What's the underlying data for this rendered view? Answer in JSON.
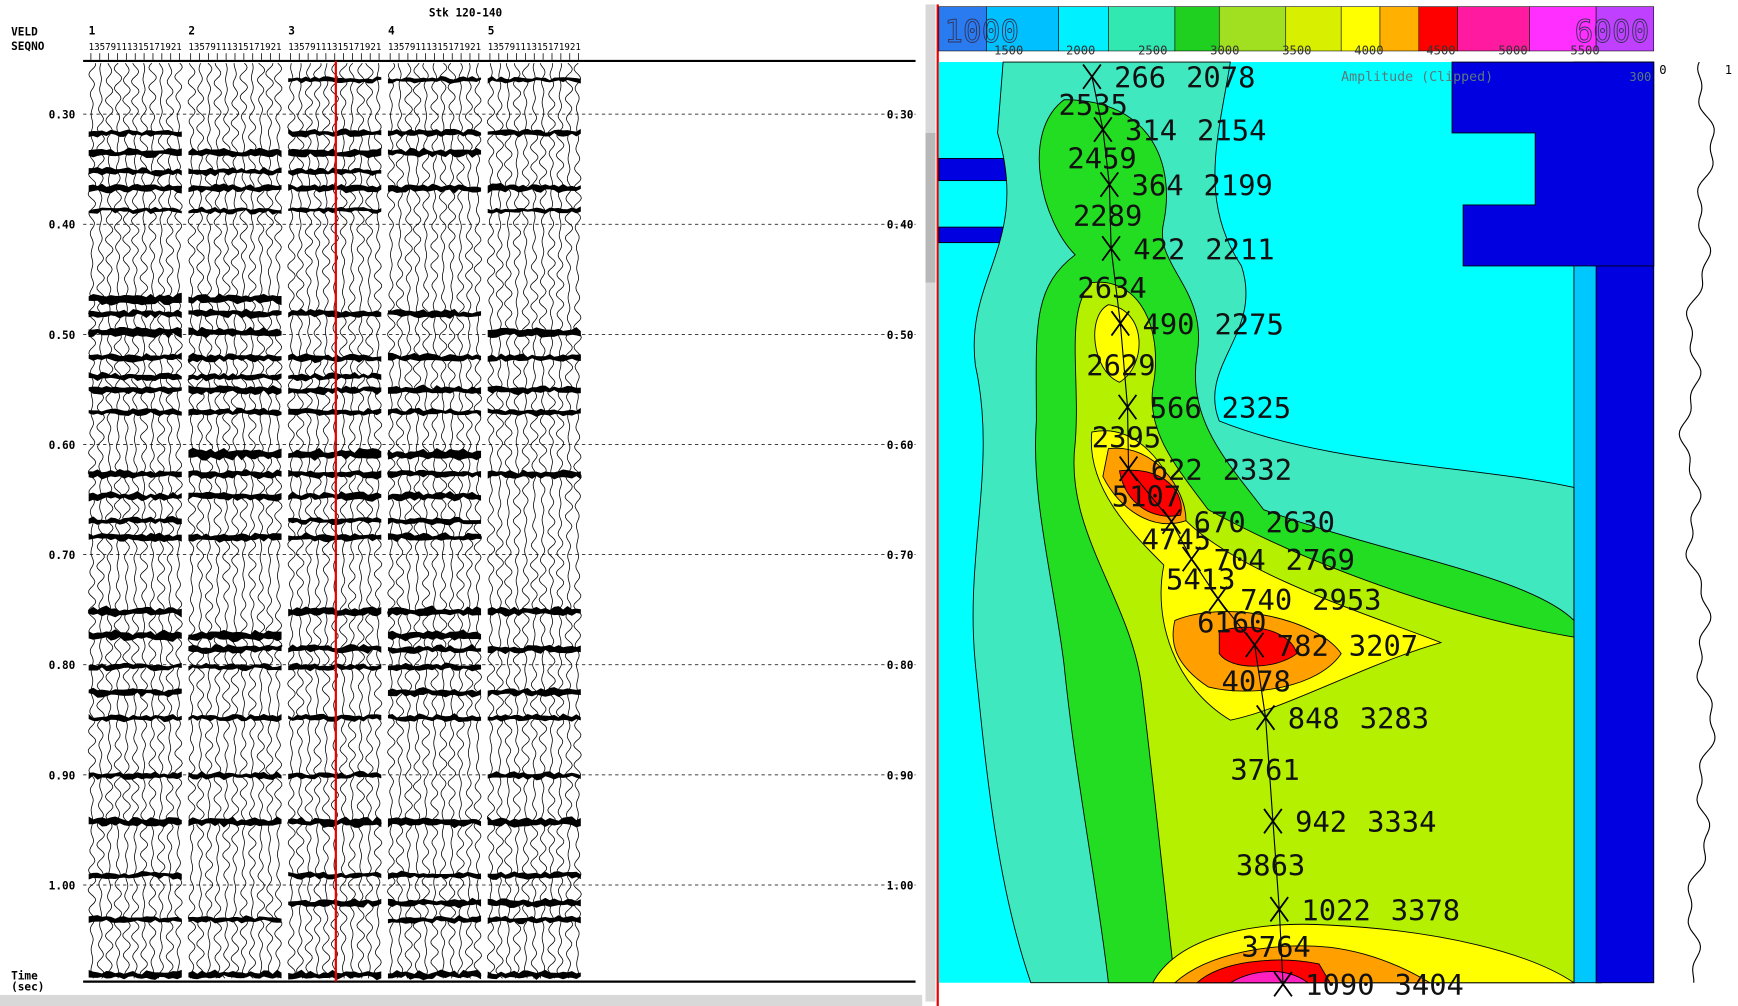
{
  "left_panel": {
    "title": "Stk 120-140",
    "header_labels": [
      "VELD",
      "SEQNO"
    ],
    "groups": [
      "1",
      "2",
      "3",
      "4",
      "5"
    ],
    "trace_numbers": "13579111315171921",
    "time_ticks": [
      "0.30",
      "0.40",
      "0.50",
      "0.60",
      "0.70",
      "0.80",
      "0.90",
      "1.00"
    ],
    "axis_label": [
      "Time",
      "(sec)"
    ]
  },
  "right_panel": {
    "color_scale": {
      "min": "1000",
      "max": "6000",
      "ticks": [
        "1500",
        "2000",
        "2500",
        "3000",
        "3500",
        "4000",
        "4500",
        "5000",
        "5500"
      ]
    },
    "overlay_title": "Amplitude (Clipped)",
    "overlay_max": "300",
    "trace_scale": [
      "0",
      "1"
    ],
    "picks": [
      {
        "time": 266,
        "velocity": 2078
      },
      {
        "time": 314,
        "velocity": 2154
      },
      {
        "time": 364,
        "velocity": 2199
      },
      {
        "time": 422,
        "velocity": 2211
      },
      {
        "time": 490,
        "velocity": 2275
      },
      {
        "time": 566,
        "velocity": 2325
      },
      {
        "time": 622,
        "velocity": 2332
      },
      {
        "time": 670,
        "velocity": 2630
      },
      {
        "time": 704,
        "velocity": 2769
      },
      {
        "time": 740,
        "velocity": 2953
      },
      {
        "time": 782,
        "velocity": 3207
      },
      {
        "time": 848,
        "velocity": 3283
      },
      {
        "time": 942,
        "velocity": 3334
      },
      {
        "time": 1022,
        "velocity": 3378
      },
      {
        "time": 1090,
        "velocity": 3404
      }
    ],
    "semblance_labels": [
      2535,
      2459,
      2289,
      2634,
      2629,
      2395,
      5107,
      4745,
      5413,
      6160,
      4078,
      3761,
      3863,
      3764
    ]
  }
}
